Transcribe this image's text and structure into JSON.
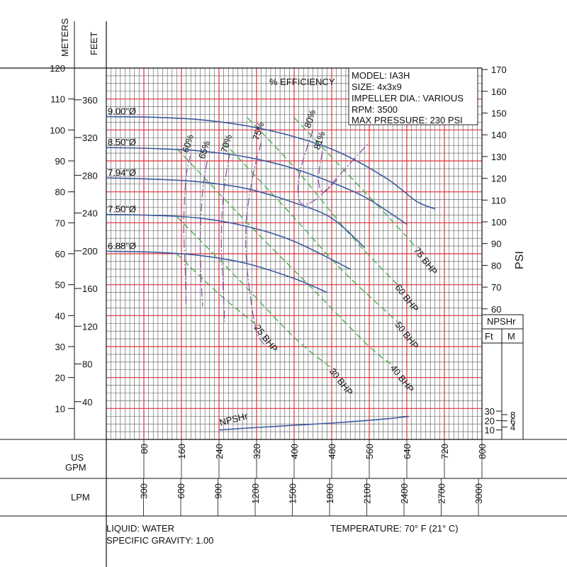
{
  "chart_data": {
    "type": "line",
    "title": "",
    "info_box": [
      "MODEL: IA3H",
      "SIZE: 4x3x9",
      "IMPELLER DIA.: VARIOUS",
      "RPM: 3500",
      "MAX PRESSURE: 230 PSI"
    ],
    "footer": {
      "liquid": "LIQUID: WATER",
      "gravity": "SPECIFIC GRAVITY: 1.00",
      "temperature": "TEMPERATURE: 70° F (21° C)"
    },
    "axes": {
      "meters_label": "METERS",
      "feet_label": "FEET",
      "psi_label": "PSI",
      "gpm_label": [
        "US",
        "GPM"
      ],
      "lpm_label": "LPM",
      "npshr_header": "NPSHr",
      "npshr_ft": "Ft",
      "npshr_m": "M",
      "xlim_gpm": [
        0,
        800
      ],
      "ylim_meters": [
        0,
        120
      ],
      "meters_ticks": [
        "120",
        "110",
        "100",
        "90",
        "80",
        "70",
        "60",
        "50",
        "40",
        "30",
        "20",
        "10"
      ],
      "feet_ticks": [
        "360",
        "320",
        "280",
        "240",
        "200",
        "160",
        "120",
        "80",
        "40"
      ],
      "psi_ticks": [
        "170",
        "160",
        "150",
        "140",
        "130",
        "120",
        "110",
        "100",
        "90",
        "80",
        "70",
        "60"
      ],
      "gpm_ticks": [
        "80",
        "160",
        "240",
        "320",
        "400",
        "480",
        "560",
        "640",
        "720",
        "800"
      ],
      "lpm_ticks": [
        "300",
        "600",
        "900",
        "1200",
        "1500",
        "1800",
        "2100",
        "2400",
        "2700",
        "3000"
      ],
      "npsh_ft_ticks": [
        "30",
        "20",
        "10"
      ],
      "npsh_m_ticks": [
        "8",
        "6",
        "4"
      ]
    },
    "efficiency_header": "% EFFICIENCY",
    "x_unit": "US GPM",
    "y_unit": "METERS",
    "head_curves": [
      {
        "name": "9.00\"Ø",
        "points": [
          [
            0,
            104.3
          ],
          [
            100,
            104.1
          ],
          [
            200,
            103.3
          ],
          [
            300,
            101.3
          ],
          [
            400,
            97.8
          ],
          [
            500,
            92.5
          ],
          [
            600,
            84.0
          ],
          [
            660,
            77.0
          ],
          [
            700,
            74.5
          ]
        ]
      },
      {
        "name": "8.50\"Ø",
        "points": [
          [
            0,
            94.3
          ],
          [
            100,
            94.0
          ],
          [
            200,
            93.2
          ],
          [
            300,
            91.2
          ],
          [
            400,
            87.5
          ],
          [
            500,
            81.8
          ],
          [
            560,
            77.5
          ],
          [
            640,
            69.5
          ]
        ]
      },
      {
        "name": "7.94\"Ø",
        "points": [
          [
            0,
            84.5
          ],
          [
            100,
            84.1
          ],
          [
            200,
            83.2
          ],
          [
            300,
            81.0
          ],
          [
            400,
            76.5
          ],
          [
            480,
            71.5
          ],
          [
            550,
            62.0
          ]
        ]
      },
      {
        "name": "7.50\"Ø",
        "points": [
          [
            0,
            72.7
          ],
          [
            100,
            72.4
          ],
          [
            200,
            71.5
          ],
          [
            300,
            68.8
          ],
          [
            400,
            64.0
          ],
          [
            520,
            55.0
          ]
        ]
      },
      {
        "name": "6.88\"Ø",
        "points": [
          [
            0,
            60.8
          ],
          [
            100,
            60.5
          ],
          [
            200,
            59.4
          ],
          [
            300,
            56.8
          ],
          [
            400,
            52.0
          ],
          [
            470,
            47.5
          ]
        ]
      }
    ],
    "efficiency_curves": [
      {
        "name": "60%",
        "points": [
          [
            180,
            92
          ],
          [
            170,
            85
          ],
          [
            165,
            70
          ],
          [
            168,
            55
          ],
          [
            170,
            43
          ]
        ]
      },
      {
        "name": "65%",
        "points": [
          [
            215,
            90
          ],
          [
            205,
            80
          ],
          [
            200,
            65
          ],
          [
            202,
            52
          ],
          [
            205,
            43
          ]
        ]
      },
      {
        "name": "70%",
        "points": [
          [
            262,
            92
          ],
          [
            250,
            80
          ],
          [
            245,
            65
          ],
          [
            248,
            52
          ],
          [
            252,
            38
          ]
        ]
      },
      {
        "name": "75%",
        "points": [
          [
            330,
            96
          ],
          [
            312,
            85
          ],
          [
            298,
            70
          ],
          [
            300,
            55
          ],
          [
            318,
            36
          ],
          [
            340,
            30
          ]
        ]
      },
      {
        "name": "80%",
        "points": [
          [
            440,
            100
          ],
          [
            415,
            88
          ],
          [
            408,
            80
          ],
          [
            418,
            76
          ],
          [
            450,
            78
          ],
          [
            500,
            86
          ],
          [
            560,
            96
          ]
        ]
      },
      {
        "name": "81%",
        "points": [
          [
            460,
            93
          ],
          [
            452,
            84
          ],
          [
            463,
            80
          ],
          [
            492,
            84
          ]
        ]
      }
    ],
    "bhp_curves": [
      {
        "name": "25 BHP",
        "points": [
          [
            150,
            60
          ],
          [
            240,
            47
          ],
          [
            320,
            37
          ]
        ]
      },
      {
        "name": "30 BHP",
        "points": [
          [
            150,
            72
          ],
          [
            280,
            52
          ],
          [
            400,
            33
          ],
          [
            480,
            23
          ]
        ]
      },
      {
        "name": "40 BHP",
        "points": [
          [
            150,
            94
          ],
          [
            300,
            70
          ],
          [
            450,
            47
          ],
          [
            560,
            30
          ],
          [
            610,
            24
          ]
        ]
      },
      {
        "name": "50 BHP",
        "points": [
          [
            250,
            96
          ],
          [
            380,
            75
          ],
          [
            500,
            55
          ],
          [
            620,
            38
          ]
        ]
      },
      {
        "name": "60 BHP",
        "points": [
          [
            300,
            104
          ],
          [
            400,
            88
          ],
          [
            520,
            66
          ],
          [
            620,
            50
          ]
        ]
      },
      {
        "name": "75 BHP",
        "points": [
          [
            400,
            104
          ],
          [
            500,
            88
          ],
          [
            600,
            72
          ],
          [
            660,
            62
          ]
        ]
      }
    ],
    "npshr_curve": {
      "name": "NPSHr",
      "unit": "Ft",
      "points": [
        [
          240,
          10
        ],
        [
          300,
          12
        ],
        [
          400,
          15
        ],
        [
          500,
          18
        ],
        [
          600,
          22
        ],
        [
          645,
          24.5
        ]
      ]
    }
  }
}
